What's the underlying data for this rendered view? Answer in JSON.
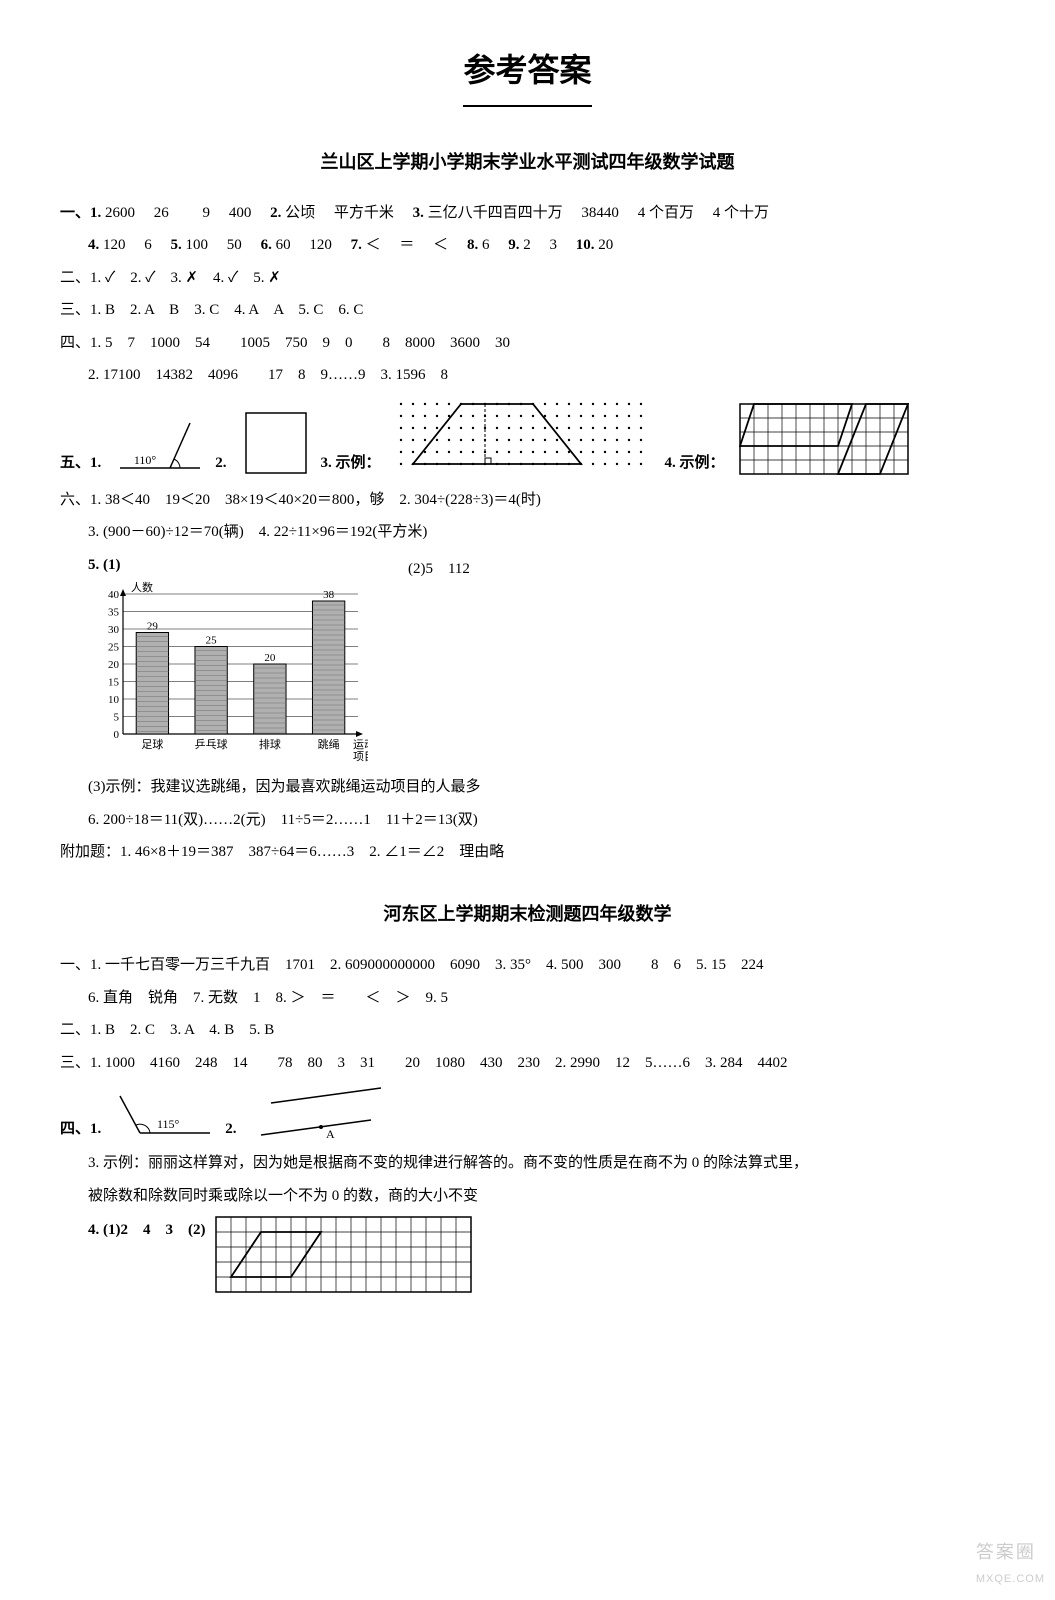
{
  "title": "参考答案",
  "section1": {
    "heading": "兰山区上学期小学期末学业水平测试四年级数学试题",
    "q1": {
      "line1_parts": [
        "一、1.",
        "2600",
        "26",
        "9",
        "400",
        "2.",
        "公顷",
        "平方千米",
        "3.",
        "三亿八千四百四十万",
        "38440",
        "4 个百万",
        "4 个十万"
      ],
      "line2_parts": [
        "4.",
        "120",
        "6",
        "5.",
        "100",
        "50",
        "6.",
        "60",
        "120",
        "7.",
        "＜",
        "＝",
        "＜",
        "8.",
        "6",
        "9.",
        "2",
        "3",
        "10.",
        "20"
      ]
    },
    "q2": "二、1. ✓　2. ✓　3. ✗　4. ✓　5. ✗",
    "q3": "三、1. B　2. A　B　3. C　4. A　A　5. C　6. C",
    "q4": {
      "line1": "四、1. 5　7　1000　54　　1005　750　9　0　　8　8000　3600　30",
      "line2": "2. 17100　14382　4096　　17　8　9……9　3. 1596　8"
    },
    "q5": {
      "labels": [
        "五、1.",
        "2.",
        "3. 示例：",
        "4. 示例："
      ],
      "angle_text": "110°",
      "fig1": {
        "stroke": "#000000"
      },
      "fig3_trapezoid": {
        "stroke": "#000000"
      },
      "fig4_grid": {
        "stroke": "#000000",
        "rows": 5,
        "cols": 12
      }
    },
    "q6": {
      "line1": "六、1. 38＜40　19＜20　38×19＜40×20＝800，够　2. 304÷(228÷3)＝4(时)",
      "line2": "3. (900－60)÷12＝70(辆)　4. 22÷11×96＝192(平方米)",
      "line3_label": "5. (1)",
      "line3_suffix": "(2)5　112",
      "chart": {
        "type": "bar",
        "ylabel": "人数",
        "xlabel": "运动\n项目",
        "categories": [
          "足球",
          "乒乓球",
          "排球",
          "跳绳"
        ],
        "values": [
          29,
          25,
          20,
          38
        ],
        "ylim": [
          0,
          40
        ],
        "ytick_step": 5,
        "bar_fill": "#b0b0b0",
        "bar_stroke": "#000000",
        "grid_color": "#000000",
        "bg": "#ffffff",
        "label_fontsize": 11
      },
      "line4": "(3)示例：我建议选跳绳，因为最喜欢跳绳运动项目的人最多",
      "line5": "6. 200÷18＝11(双)……2(元)　11÷5＝2……1　11＋2＝13(双)",
      "line6": "附加题：1. 46×8＋19＝387　387÷64＝6……3　2. ∠1＝∠2　理由略"
    }
  },
  "section2": {
    "heading": "河东区上学期期末检测题四年级数学",
    "q1": {
      "line1": "一、1. 一千七百零一万三千九百　1701　2. 609000000000　6090　3. 35°　4. 500　300　　8　6　5. 15　224",
      "line2": "6. 直角　锐角　7. 无数　1　8. ＞　＝　　＜　＞　9. 5"
    },
    "q2": "二、1. B　2. C　3. A　4. B　5. B",
    "q3": "三、1. 1000　4160　248　14　　78　80　3　31　　20　1080　430　230　2. 2990　12　5……6　3. 284　4402",
    "q4": {
      "label1": "四、1.",
      "angle_text": "115°",
      "label2": "2.",
      "point_label": "A",
      "line3a": "3. 示例：丽丽这样算对，因为她是根据商不变的规律进行解答的。商不变的性质是在商不为 0 的除法算式里，",
      "line3b": "被除数和除数同时乘或除以一个不为 0 的数，商的大小不变",
      "line4_label": "4. (1)2　4　3　(2)",
      "grid": {
        "rows": 5,
        "cols": 17,
        "stroke": "#000000"
      }
    }
  },
  "watermark": {
    "main": "答案圈",
    "sub": "MXQE.COM"
  }
}
